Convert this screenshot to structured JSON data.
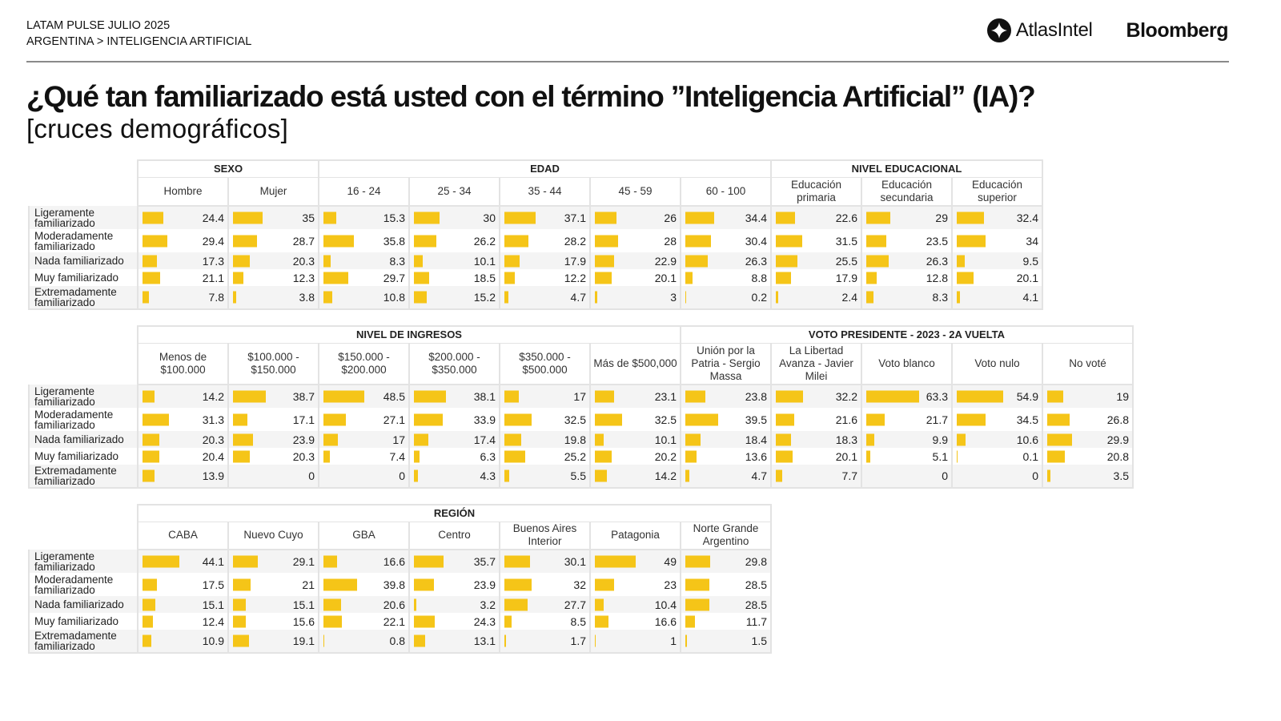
{
  "header": {
    "line1": "LATAM PULSE JULIO 2025",
    "line2": "ARGENTINA > INTELIGENCIA ARTIFICIAL",
    "logo_atlas": "AtlasIntel",
    "logo_bloomberg": "Bloomberg"
  },
  "title": "¿Qué tan familiarizado está usted con el término ”Inteligencia Artificial” (IA)?",
  "subtitle": "[cruces demográficos]",
  "colors": {
    "bar": "#f5c518",
    "stripe": "#f4f4f4",
    "grid": "#e3e3e3"
  },
  "chart_data": [
    {
      "type": "table",
      "title": "Sexo / Edad / Nivel educacional",
      "row_labels": [
        "Ligeramente familiarizado",
        "Moderadamente familiarizado",
        "Nada familiarizado",
        "Muy familiarizado",
        "Extremadamente familiarizado"
      ],
      "groups": [
        {
          "name": "SEXO",
          "columns": [
            {
              "label": "Hombre",
              "values": [
                24.4,
                29.4,
                17.3,
                21.1,
                7.8
              ]
            },
            {
              "label": "Mujer",
              "values": [
                35,
                28.7,
                20.3,
                12.3,
                3.8
              ]
            }
          ]
        },
        {
          "name": "EDAD",
          "columns": [
            {
              "label": "16 - 24",
              "values": [
                15.3,
                35.8,
                8.3,
                29.7,
                10.8
              ]
            },
            {
              "label": "25 - 34",
              "values": [
                30,
                26.2,
                10.1,
                18.5,
                15.2
              ]
            },
            {
              "label": "35 - 44",
              "values": [
                37.1,
                28.2,
                17.9,
                12.2,
                4.7
              ]
            },
            {
              "label": "45 - 59",
              "values": [
                26,
                28,
                22.9,
                20.1,
                3
              ]
            },
            {
              "label": "60 - 100",
              "values": [
                34.4,
                30.4,
                26.3,
                8.8,
                0.2
              ]
            }
          ]
        },
        {
          "name": "NIVEL EDUCACIONAL",
          "columns": [
            {
              "label": "Educación primaria",
              "values": [
                22.6,
                31.5,
                25.5,
                17.9,
                2.4
              ]
            },
            {
              "label": "Educación secundaria",
              "values": [
                29,
                23.5,
                26.3,
                12.8,
                8.3
              ]
            },
            {
              "label": "Educación superior",
              "values": [
                32.4,
                34,
                9.5,
                20.1,
                4.1
              ]
            }
          ]
        }
      ]
    },
    {
      "type": "table",
      "title": "Nivel de ingresos / Voto presidente",
      "row_labels": [
        "Ligeramente familiarizado",
        "Moderadamente familiarizado",
        "Nada familiarizado",
        "Muy familiarizado",
        "Extremadamente familiarizado"
      ],
      "groups": [
        {
          "name": "NIVEL DE INGRESOS",
          "columns": [
            {
              "label": "Menos de $100.000",
              "values": [
                14.2,
                31.3,
                20.3,
                20.4,
                13.9
              ]
            },
            {
              "label": "$100.000 - $150.000",
              "values": [
                38.7,
                17.1,
                23.9,
                20.3,
                0
              ]
            },
            {
              "label": "$150.000 - $200.000",
              "values": [
                48.5,
                27.1,
                17,
                7.4,
                0
              ]
            },
            {
              "label": "$200.000 - $350.000",
              "values": [
                38.1,
                33.9,
                17.4,
                6.3,
                4.3
              ]
            },
            {
              "label": "$350.000 - $500.000",
              "values": [
                17,
                32.5,
                19.8,
                25.2,
                5.5
              ]
            },
            {
              "label": "Más de $500,000",
              "values": [
                23.1,
                32.5,
                10.1,
                20.2,
                14.2
              ]
            }
          ]
        },
        {
          "name": "VOTO PRESIDENTE - 2023 - 2A VUELTA",
          "columns": [
            {
              "label": "Unión por la Patria - Sergio Massa",
              "values": [
                23.8,
                39.5,
                18.4,
                13.6,
                4.7
              ]
            },
            {
              "label": "La Libertad Avanza - Javier Milei",
              "values": [
                32.2,
                21.6,
                18.3,
                20.1,
                7.7
              ]
            },
            {
              "label": "Voto blanco",
              "values": [
                63.3,
                21.7,
                9.9,
                5.1,
                0
              ]
            },
            {
              "label": "Voto nulo",
              "values": [
                54.9,
                34.5,
                10.6,
                0.1,
                0
              ]
            },
            {
              "label": "No voté",
              "values": [
                19,
                26.8,
                29.9,
                20.8,
                3.5
              ]
            }
          ]
        }
      ]
    },
    {
      "type": "table",
      "title": "Región",
      "row_labels": [
        "Ligeramente familiarizado",
        "Moderadamente familiarizado",
        "Nada familiarizado",
        "Muy familiarizado",
        "Extremadamente familiarizado"
      ],
      "groups": [
        {
          "name": "REGIÓN",
          "columns": [
            {
              "label": "CABA",
              "values": [
                44.1,
                17.5,
                15.1,
                12.4,
                10.9
              ]
            },
            {
              "label": "Nuevo Cuyo",
              "values": [
                29.1,
                21,
                15.1,
                15.6,
                19.1
              ]
            },
            {
              "label": "GBA",
              "values": [
                16.6,
                39.8,
                20.6,
                22.1,
                0.8
              ]
            },
            {
              "label": "Centro",
              "values": [
                35.7,
                23.9,
                3.2,
                24.3,
                13.1
              ]
            },
            {
              "label": "Buenos Aires Interior",
              "values": [
                30.1,
                32,
                27.7,
                8.5,
                1.7
              ]
            },
            {
              "label": "Patagonia",
              "values": [
                49,
                23,
                10.4,
                16.6,
                1
              ]
            },
            {
              "label": "Norte Grande Argentino",
              "values": [
                29.8,
                28.5,
                28.5,
                11.7,
                1.5
              ]
            }
          ]
        }
      ]
    }
  ]
}
